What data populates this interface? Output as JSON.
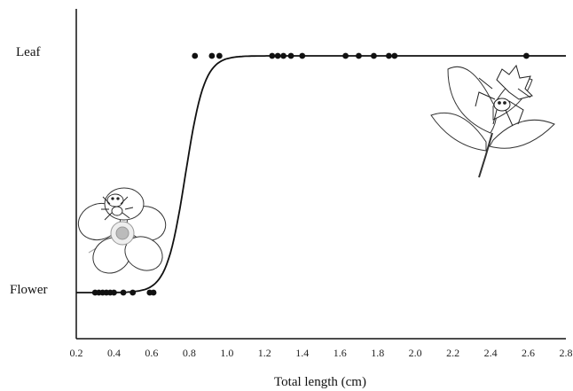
{
  "chart_data": {
    "type": "scatter",
    "title": "",
    "xlabel": "Total length (cm)",
    "ylabel": "",
    "xlim": [
      0.2,
      2.8
    ],
    "x_ticks": [
      "0.2",
      "0.4",
      "0.6",
      "0.8",
      "1.0",
      "1.2",
      "1.4",
      "1.6",
      "1.8",
      "2.0",
      "2.2",
      "2.4",
      "2.6",
      "2.8"
    ],
    "y_categories": [
      "Flower",
      "Leaf"
    ],
    "grid": false,
    "points": [
      {
        "x": 0.3,
        "y": "Flower"
      },
      {
        "x": 0.32,
        "y": "Flower"
      },
      {
        "x": 0.34,
        "y": "Flower"
      },
      {
        "x": 0.36,
        "y": "Flower"
      },
      {
        "x": 0.38,
        "y": "Flower"
      },
      {
        "x": 0.4,
        "y": "Flower"
      },
      {
        "x": 0.45,
        "y": "Flower"
      },
      {
        "x": 0.5,
        "y": "Flower"
      },
      {
        "x": 0.59,
        "y": "Flower"
      },
      {
        "x": 0.61,
        "y": "Flower"
      },
      {
        "x": 0.83,
        "y": "Leaf"
      },
      {
        "x": 0.92,
        "y": "Leaf"
      },
      {
        "x": 0.96,
        "y": "Leaf"
      },
      {
        "x": 1.24,
        "y": "Leaf"
      },
      {
        "x": 1.27,
        "y": "Leaf"
      },
      {
        "x": 1.3,
        "y": "Leaf"
      },
      {
        "x": 1.34,
        "y": "Leaf"
      },
      {
        "x": 1.4,
        "y": "Leaf"
      },
      {
        "x": 1.63,
        "y": "Leaf"
      },
      {
        "x": 1.7,
        "y": "Leaf"
      },
      {
        "x": 1.78,
        "y": "Leaf"
      },
      {
        "x": 1.86,
        "y": "Leaf"
      },
      {
        "x": 1.89,
        "y": "Leaf"
      },
      {
        "x": 2.59,
        "y": "Leaf"
      }
    ],
    "fit_curve": {
      "type": "logistic",
      "midpoint": 0.78,
      "steepness": 20
    },
    "illustrations": [
      "flower-with-spider-illustration",
      "leaf-with-spider-illustration"
    ]
  }
}
